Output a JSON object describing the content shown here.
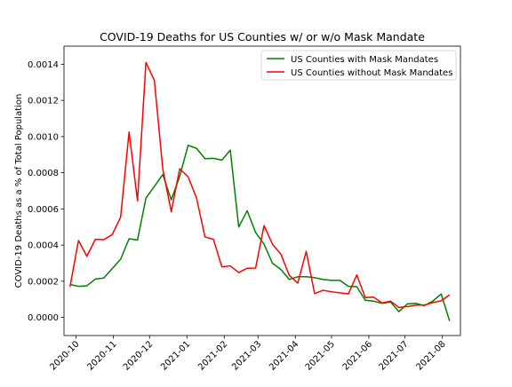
{
  "chart_data": {
    "type": "line",
    "title": "COVID-19 Deaths for US Counties w/ or w/o Mask Mandate",
    "xlabel": "",
    "ylabel": "COVID-19 Deaths as a % of Total Population",
    "x_ticks": [
      "2020-10",
      "2020-11",
      "2020-12",
      "2021-01",
      "2021-02",
      "2021-03",
      "2021-04",
      "2021-05",
      "2021-06",
      "2021-07",
      "2021-08"
    ],
    "y_ticks": [
      "0.0000",
      "0.0002",
      "0.0004",
      "0.0006",
      "0.0008",
      "0.0010",
      "0.0012",
      "0.0014"
    ],
    "ylim": [
      -0.0001,
      0.0015
    ],
    "xlim": [
      "2020-09-21",
      "2021-08-16"
    ],
    "legend_position": "top-right",
    "grid": false,
    "series": [
      {
        "name": "US Counties with Mask Mandates",
        "color": "#008000",
        "points": [
          [
            "2020-09-26",
            0.000182
          ],
          [
            "2020-10-03",
            0.000172
          ],
          [
            "2020-10-10",
            0.000175
          ],
          [
            "2020-10-17",
            0.000212
          ],
          [
            "2020-10-24",
            0.000218
          ],
          [
            "2020-10-31",
            0.00027
          ],
          [
            "2020-11-07",
            0.000322
          ],
          [
            "2020-11-14",
            0.000435
          ],
          [
            "2020-11-21",
            0.000428
          ],
          [
            "2020-11-28",
            0.00066
          ],
          [
            "2020-12-05",
            0.000725
          ],
          [
            "2020-12-12",
            0.00079
          ],
          [
            "2020-12-19",
            0.00065
          ],
          [
            "2020-12-26",
            0.00078
          ],
          [
            "2021-01-02",
            0.000952
          ],
          [
            "2021-01-09",
            0.000935
          ],
          [
            "2021-01-16",
            0.000878
          ],
          [
            "2021-01-23",
            0.00088
          ],
          [
            "2021-01-30",
            0.00087
          ],
          [
            "2021-02-06",
            0.000925
          ],
          [
            "2021-02-13",
            0.0005
          ],
          [
            "2021-02-20",
            0.00059
          ],
          [
            "2021-02-27",
            0.00047
          ],
          [
            "2021-03-06",
            0.000405
          ],
          [
            "2021-03-13",
            0.0003
          ],
          [
            "2021-03-20",
            0.000265
          ],
          [
            "2021-03-27",
            0.00021
          ],
          [
            "2021-04-03",
            0.000225
          ],
          [
            "2021-04-10",
            0.000225
          ],
          [
            "2021-04-17",
            0.00022
          ],
          [
            "2021-04-24",
            0.00021
          ],
          [
            "2021-05-01",
            0.000205
          ],
          [
            "2021-05-08",
            0.000205
          ],
          [
            "2021-05-15",
            0.000172
          ],
          [
            "2021-05-22",
            0.00017
          ],
          [
            "2021-05-29",
            9.5e-05
          ],
          [
            "2021-06-05",
            9e-05
          ],
          [
            "2021-06-12",
            7.8e-05
          ],
          [
            "2021-06-19",
            8.5e-05
          ],
          [
            "2021-06-26",
            3.2e-05
          ],
          [
            "2021-07-03",
            7.5e-05
          ],
          [
            "2021-07-10",
            7.8e-05
          ],
          [
            "2021-07-17",
            6.5e-05
          ],
          [
            "2021-07-24",
            9e-05
          ],
          [
            "2021-07-31",
            0.00013
          ],
          [
            "2021-08-07",
            -2e-05
          ]
        ]
      },
      {
        "name": "US Counties without Mask Mandates",
        "color": "#ff0000",
        "points": [
          [
            "2020-09-26",
            0.00017
          ],
          [
            "2020-10-03",
            0.000425
          ],
          [
            "2020-10-10",
            0.000338
          ],
          [
            "2020-10-17",
            0.000432
          ],
          [
            "2020-10-24",
            0.00043
          ],
          [
            "2020-10-31",
            0.000458
          ],
          [
            "2020-11-07",
            0.000555
          ],
          [
            "2020-11-14",
            0.001025
          ],
          [
            "2020-11-21",
            0.000645
          ],
          [
            "2020-11-28",
            0.00141
          ],
          [
            "2020-12-05",
            0.00131
          ],
          [
            "2020-12-12",
            0.00082
          ],
          [
            "2020-12-19",
            0.000585
          ],
          [
            "2020-12-26",
            0.000822
          ],
          [
            "2021-01-02",
            0.000778
          ],
          [
            "2021-01-09",
            0.00066
          ],
          [
            "2021-01-16",
            0.000445
          ],
          [
            "2021-01-23",
            0.000432
          ],
          [
            "2021-01-30",
            0.00028
          ],
          [
            "2021-02-06",
            0.000285
          ],
          [
            "2021-02-13",
            0.000248
          ],
          [
            "2021-02-20",
            0.000272
          ],
          [
            "2021-02-27",
            0.000273
          ],
          [
            "2021-03-06",
            0.000508
          ],
          [
            "2021-03-13",
            0.000405
          ],
          [
            "2021-03-20",
            0.00035
          ],
          [
            "2021-03-27",
            0.000232
          ],
          [
            "2021-04-03",
            0.00019
          ],
          [
            "2021-04-10",
            0.000365
          ],
          [
            "2021-04-17",
            0.000132
          ],
          [
            "2021-04-24",
            0.00015
          ],
          [
            "2021-05-01",
            0.000142
          ],
          [
            "2021-05-08",
            0.000136
          ],
          [
            "2021-05-15",
            0.00013
          ],
          [
            "2021-05-22",
            0.000235
          ],
          [
            "2021-05-29",
            0.00011
          ],
          [
            "2021-06-05",
            0.000112
          ],
          [
            "2021-06-12",
            8e-05
          ],
          [
            "2021-06-19",
            9e-05
          ],
          [
            "2021-06-26",
            5.5e-05
          ],
          [
            "2021-07-03",
            6e-05
          ],
          [
            "2021-07-10",
            6.8e-05
          ],
          [
            "2021-07-17",
            6.8e-05
          ],
          [
            "2021-07-24",
            8.2e-05
          ],
          [
            "2021-07-31",
            9.2e-05
          ],
          [
            "2021-08-07",
            0.000125
          ]
        ]
      }
    ]
  }
}
